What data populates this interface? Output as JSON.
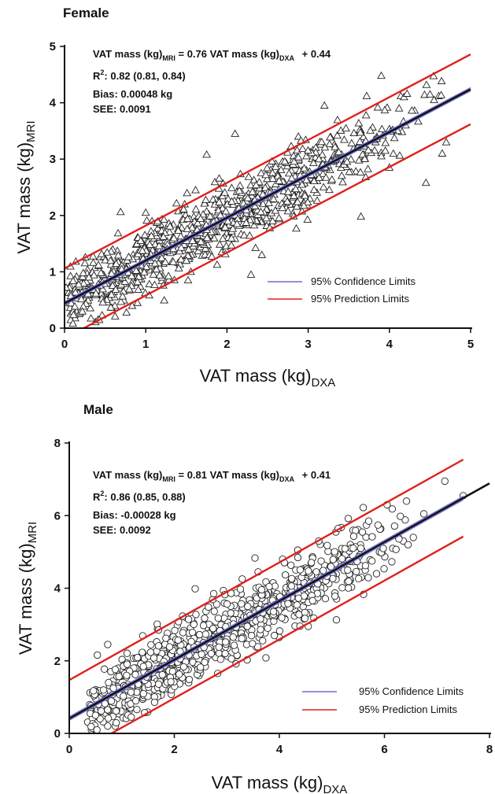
{
  "chart_data": [
    {
      "type": "scatter",
      "title": "Female",
      "marker": "triangle",
      "xlabel": "VAT mass (kg)",
      "xlabel_sub": "DXA",
      "ylabel": "VAT mass (kg)",
      "ylabel_sub": "MRI",
      "xlim": [
        0,
        5
      ],
      "ylim": [
        0,
        5
      ],
      "xticks": [
        "0",
        "1",
        "2",
        "3",
        "4",
        "5"
      ],
      "yticks": [
        "0",
        "1",
        "2",
        "3",
        "4",
        "5"
      ],
      "grid": false,
      "legend_position": "bottom-right",
      "equation": {
        "lhs": "VAT mass (kg)",
        "lhs_sub": "MRI",
        "mid": " = 0.76 VAT mass (kg)",
        "mid_sub": "DXA",
        "rhs": " + 0.44"
      },
      "r2_label": "R",
      "r2_sup": "2",
      "r2_value": ": 0.82 (0.81, 0.84)",
      "bias": "Bias: 0.00048 kg",
      "see": "SEE: 0.0091",
      "regression": {
        "slope": 0.76,
        "intercept": 0.44
      },
      "prediction_offset": 0.62,
      "confidence_offset": 0.03,
      "series": [
        {
          "name": "95% Confidence Limits",
          "color": "#6a6ad8"
        },
        {
          "name": "95% Prediction Limits",
          "color": "#e0201b"
        }
      ],
      "scatter_summary": {
        "n": 900,
        "x_range": [
          0.05,
          4.7
        ],
        "slope": 0.76,
        "intercept": 0.44,
        "sd": 0.32
      },
      "outliers": [
        {
          "x": 3.9,
          "y": 4.48
        },
        {
          "x": 4.5,
          "y": 4.15
        },
        {
          "x": 4.45,
          "y": 2.58
        },
        {
          "x": 3.72,
          "y": 4.12
        },
        {
          "x": 4.2,
          "y": 3.6
        },
        {
          "x": 4.7,
          "y": 3.3
        },
        {
          "x": 4.65,
          "y": 3.1
        },
        {
          "x": 4.0,
          "y": 2.85
        },
        {
          "x": 2.43,
          "y": 1.3
        },
        {
          "x": 3.65,
          "y": 1.98
        },
        {
          "x": 1.0,
          "y": 2.05
        },
        {
          "x": 0.02,
          "y": 0.72
        },
        {
          "x": 0.3,
          "y": 0.9
        },
        {
          "x": 4.55,
          "y": 4.05
        },
        {
          "x": 3.2,
          "y": 3.95
        },
        {
          "x": 2.1,
          "y": 3.45
        },
        {
          "x": 3.95,
          "y": 3.15
        },
        {
          "x": 1.75,
          "y": 3.08
        }
      ]
    },
    {
      "type": "scatter",
      "title": "Male",
      "marker": "circle",
      "xlabel": "VAT mass (kg)",
      "xlabel_sub": "DXA",
      "ylabel": "VAT mass (kg)",
      "ylabel_sub": "MRI",
      "xlim": [
        0,
        8
      ],
      "ylim": [
        0,
        8
      ],
      "xticks": [
        "0",
        "2",
        "4",
        "6",
        "8"
      ],
      "yticks": [
        "0",
        "2",
        "4",
        "6",
        "8"
      ],
      "grid": false,
      "legend_position": "bottom-right",
      "equation": {
        "lhs": "VAT mass (kg)",
        "lhs_sub": "MRI",
        "mid": " = 0.81 VAT mass (kg)",
        "mid_sub": "DXA",
        "rhs": " + 0.41"
      },
      "r2_label": "R",
      "r2_sup": "2",
      "r2_value": ": 0.86 (0.85, 0.88)",
      "bias": "Bias: -0.00028 kg",
      "see": "SEE: 0.0092",
      "regression": {
        "slope": 0.81,
        "intercept": 0.41
      },
      "prediction_offset": 1.06,
      "confidence_offset": 0.05,
      "series": [
        {
          "name": "95% Confidence Limits",
          "color": "#6a6ad8"
        },
        {
          "name": "95% Prediction Limits",
          "color": "#e0201b"
        }
      ],
      "scatter_summary": {
        "n": 850,
        "x_range": [
          0.35,
          6.8
        ],
        "slope": 0.81,
        "intercept": 0.41,
        "sd": 0.48
      },
      "outliers": [
        {
          "x": 7.15,
          "y": 6.95
        },
        {
          "x": 7.5,
          "y": 6.55
        },
        {
          "x": 6.75,
          "y": 6.05
        },
        {
          "x": 5.7,
          "y": 5.85
        },
        {
          "x": 6.05,
          "y": 6.3
        },
        {
          "x": 6.55,
          "y": 5.4
        },
        {
          "x": 5.85,
          "y": 4.4
        },
        {
          "x": 5.3,
          "y": 4.5
        },
        {
          "x": 4.75,
          "y": 5.3
        },
        {
          "x": 2.75,
          "y": 3.85
        },
        {
          "x": 1.7,
          "y": 2.85
        },
        {
          "x": 4.55,
          "y": 2.95
        },
        {
          "x": 0.4,
          "y": 0.55
        },
        {
          "x": 0.5,
          "y": 0.5
        },
        {
          "x": 4.35,
          "y": 5.05
        },
        {
          "x": 5.55,
          "y": 5.1
        },
        {
          "x": 6.45,
          "y": 5.2
        }
      ]
    }
  ]
}
